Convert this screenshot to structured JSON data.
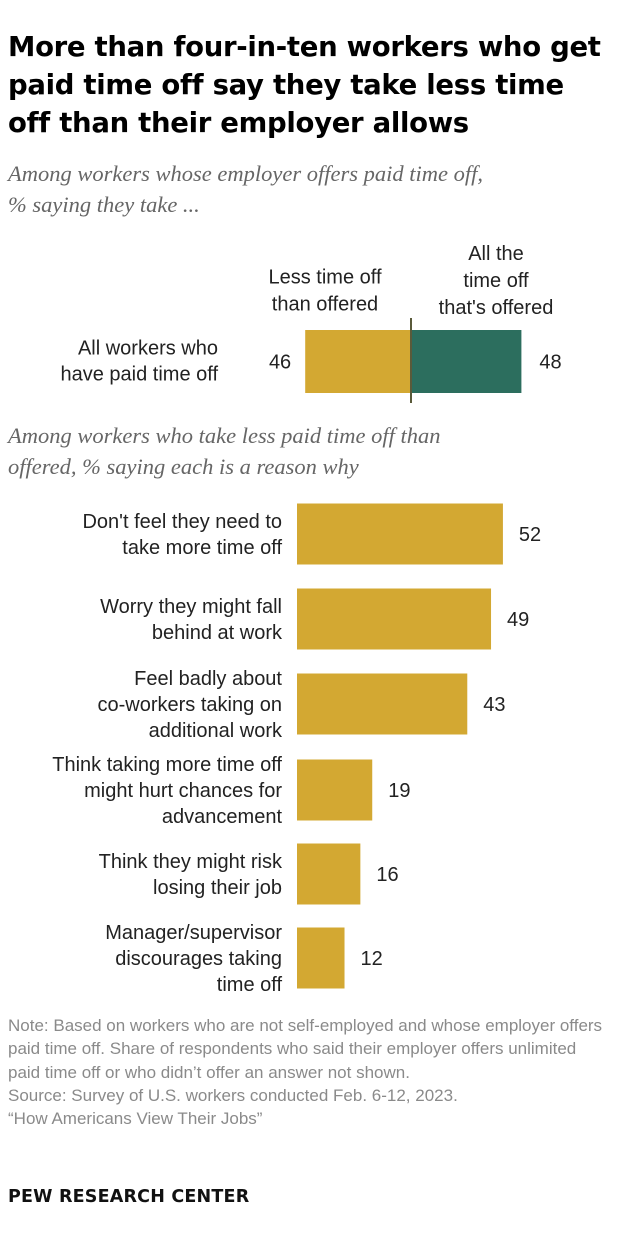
{
  "title": "More than four-in-ten workers who get paid time off say they take less time off than their employer allows",
  "subtitle_top": "Among workers whose employer offers paid time off,\n% saying they take ...",
  "subtitle_bottom": "Among workers who take less paid time off than\noffered, % saying each is a reason why",
  "note": "Note: Based on workers who are not self-employed and whose employer offers paid time off. Share of respondents who said their employer offers unlimited paid time off or who didn’t offer an answer not shown.",
  "source": "Source: Survey of U.S. workers conducted Feb. 6-12, 2023.\n“How Americans View Their Jobs”",
  "logo": "PEW RESEARCH CENTER",
  "colors": {
    "gold": "#D3A832",
    "green": "#2C6E5E",
    "divider": "#5a5a3a"
  },
  "chart_data": [
    {
      "type": "bar",
      "orientation": "horizontal-diverging",
      "categories": [
        "All workers who have paid time off"
      ],
      "series": [
        {
          "name": "Less time off than offered",
          "values": [
            46
          ],
          "color": "#D3A832"
        },
        {
          "name": "All the time off that's offered",
          "values": [
            48
          ],
          "color": "#2C6E5E"
        }
      ],
      "legend_position": "above bars"
    },
    {
      "type": "bar",
      "orientation": "horizontal",
      "categories": [
        "Don't feel they need to take more time off",
        "Worry they might fall behind at work",
        "Feel badly about co-workers taking on additional work",
        "Think taking more time off might hurt chances for advancement",
        "Think they might risk losing their job",
        "Manager/supervisor discourages taking time off"
      ],
      "values": [
        52,
        49,
        43,
        19,
        16,
        12
      ],
      "color": "#D3A832"
    }
  ]
}
